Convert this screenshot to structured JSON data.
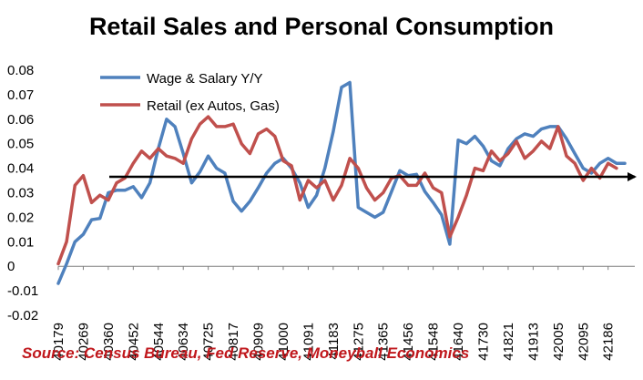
{
  "chart_data": {
    "type": "line",
    "title": "Retail Sales and Personal Consumption",
    "source": "Source: Census Bureau, Fed Reserve, Moneyball Economics",
    "xlabel": "",
    "ylabel": "",
    "ylim": [
      -0.02,
      0.08
    ],
    "yticks": [
      {
        "v": 0.08,
        "label": "0.08"
      },
      {
        "v": 0.07,
        "label": "0.07"
      },
      {
        "v": 0.06,
        "label": "0.06"
      },
      {
        "v": 0.05,
        "label": "0.05"
      },
      {
        "v": 0.04,
        "label": "0.04"
      },
      {
        "v": 0.03,
        "label": "0.03"
      },
      {
        "v": 0.02,
        "label": "0.02"
      },
      {
        "v": 0.01,
        "label": "0.01"
      },
      {
        "v": 0,
        "label": "0"
      },
      {
        "v": -0.01,
        "label": "-0.01"
      },
      {
        "v": -0.02,
        "label": "-0.02"
      }
    ],
    "xtick_labels": [
      "40179",
      "40269",
      "40360",
      "40452",
      "40544",
      "40634",
      "40725",
      "40817",
      "40909",
      "41000",
      "41091",
      "41183",
      "41275",
      "41365",
      "41456",
      "41548",
      "41640",
      "41730",
      "41821",
      "41913",
      "42005",
      "42095",
      "42186"
    ],
    "grid": false,
    "legend": "top-left",
    "trend_arrow_y": 0.0365,
    "colors": {
      "wage": "#4f81bd",
      "retail": "#c0504d",
      "arrow": "#000000"
    },
    "series": [
      {
        "name": "Wage & Salary Y/Y",
        "values": [
          -0.007,
          0.001,
          0.01,
          0.013,
          0.019,
          0.0195,
          0.03,
          0.031,
          0.031,
          0.0325,
          0.028,
          0.034,
          0.048,
          0.06,
          0.057,
          0.046,
          0.034,
          0.0385,
          0.045,
          0.04,
          0.038,
          0.0265,
          0.0225,
          0.0265,
          0.032,
          0.038,
          0.042,
          0.044,
          0.04,
          0.034,
          0.024,
          0.029,
          0.04,
          0.055,
          0.073,
          0.075,
          0.024,
          0.022,
          0.02,
          0.022,
          0.0305,
          0.039,
          0.037,
          0.0375,
          0.0305,
          0.026,
          0.021,
          0.009,
          0.0515,
          0.05,
          0.053,
          0.049,
          0.043,
          0.041,
          0.048,
          0.052,
          0.054,
          0.053,
          0.056,
          0.057,
          0.057,
          0.052,
          0.046,
          0.04,
          0.038,
          0.042,
          0.044,
          0.042,
          0.042
        ]
      },
      {
        "name": "Retail (ex Autos, Gas)",
        "values": [
          0.001,
          0.01,
          0.033,
          0.037,
          0.026,
          0.029,
          0.027,
          0.034,
          0.036,
          0.042,
          0.047,
          0.044,
          0.048,
          0.045,
          0.044,
          0.042,
          0.052,
          0.058,
          0.061,
          0.057,
          0.057,
          0.058,
          0.05,
          0.046,
          0.054,
          0.056,
          0.053,
          0.043,
          0.041,
          0.027,
          0.035,
          0.032,
          0.035,
          0.027,
          0.033,
          0.044,
          0.04,
          0.032,
          0.027,
          0.03,
          0.036,
          0.037,
          0.033,
          0.033,
          0.038,
          0.032,
          0.03,
          0.012,
          0.02,
          0.029,
          0.04,
          0.039,
          0.047,
          0.043,
          0.046,
          0.051,
          0.044,
          0.047,
          0.051,
          0.048,
          0.057,
          0.045,
          0.042,
          0.035,
          0.04,
          0.036,
          0.042,
          0.04
        ]
      }
    ]
  }
}
